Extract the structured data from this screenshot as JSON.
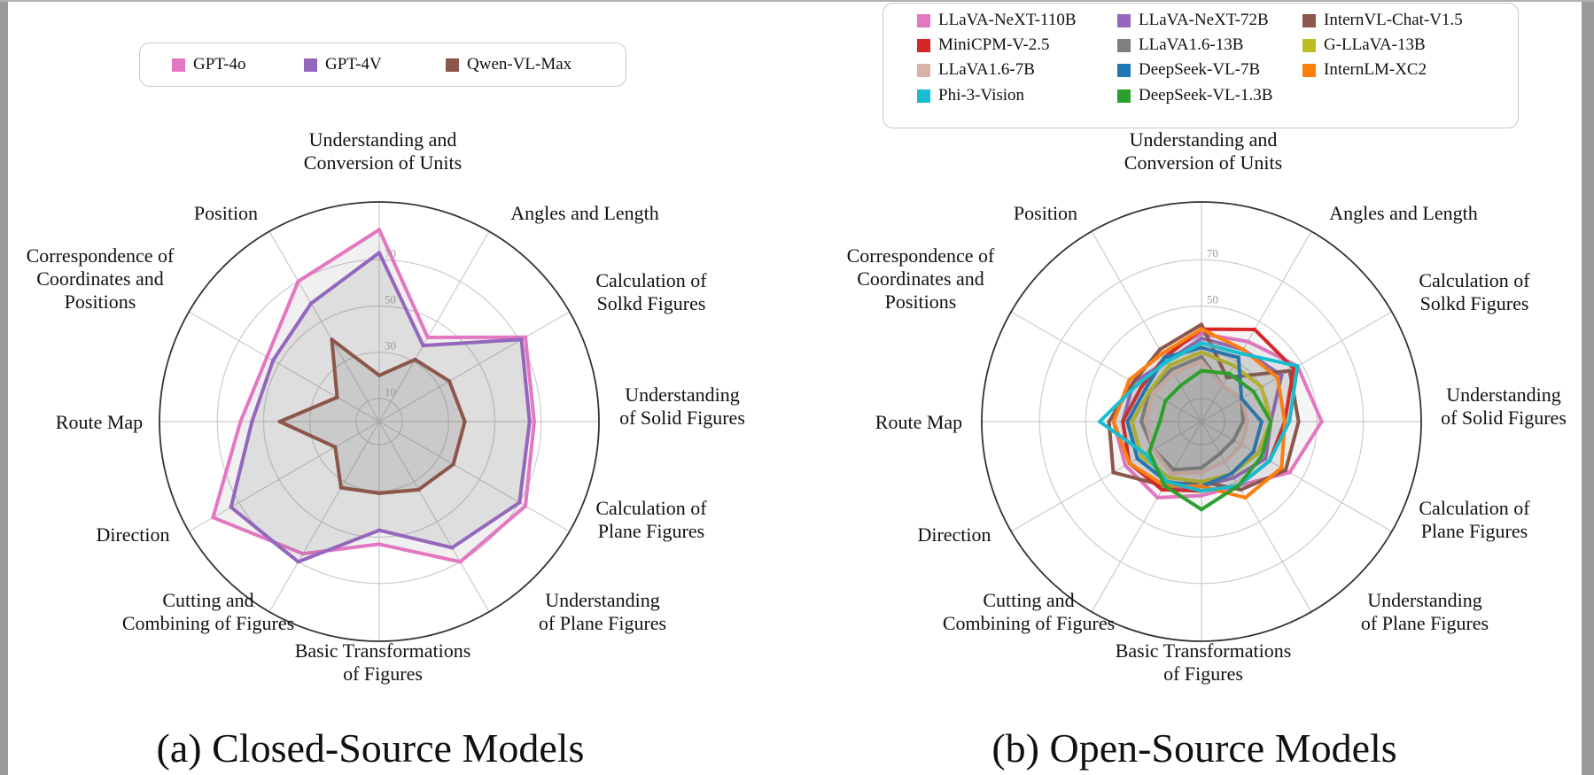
{
  "chart_data": [
    {
      "type": "radar",
      "title": "(a) Closed-Source Models",
      "axes": [
        "Understanding and Conversion of Units",
        "Angles and Length",
        "Calculation of Solkd Figures",
        "Understanding of Solid Figures",
        "Calculation of Plane Figures",
        "Understanding of Plane Figures",
        "Basic Transformations of Figures",
        "Cutting and Combining of Figures",
        "Direction",
        "Route Map",
        "Correspondence of Coordinates and Positions",
        "Position"
      ],
      "r_ticks": [
        10,
        30,
        50,
        70
      ],
      "r_max": 95,
      "grid": true,
      "legend_position": "top",
      "series": [
        {
          "name": "GPT-4o",
          "color": "#e377c2",
          "values": [
            83,
            42,
            73,
            67,
            73,
            70,
            53,
            66,
            83,
            60,
            56,
            70
          ]
        },
        {
          "name": "GPT-4V",
          "color": "#9467bd",
          "values": [
            73,
            38,
            71,
            65,
            70,
            63,
            47,
            70,
            74,
            55,
            53,
            59
          ]
        },
        {
          "name": "Qwen-VL-Max",
          "color": "#8c564b",
          "values": [
            20,
            31,
            35,
            37,
            37,
            34,
            31,
            33,
            22,
            43,
            21,
            41
          ]
        }
      ]
    },
    {
      "type": "radar",
      "title": "(b) Open-Source Models",
      "axes": [
        "Understanding and Conversion of Units",
        "Angles and Length",
        "Calculation of Solkd Figures",
        "Understanding of Solid Figures",
        "Calculation of Plane Figures",
        "Understanding of Plane Figures",
        "Basic Transformations of Figures",
        "Cutting and Combining of Figures",
        "Direction",
        "Route Map",
        "Correspondence of Coordinates and Positions",
        "Position"
      ],
      "r_ticks": [
        30,
        50,
        70
      ],
      "r_max": 95,
      "grid": true,
      "legend_position": "top",
      "series": [
        {
          "name": "LLaVA-NeXT-110B",
          "color": "#e377c2",
          "values": [
            38,
            40,
            48,
            52,
            44,
            32,
            32,
            38,
            38,
            38,
            36,
            34
          ]
        },
        {
          "name": "LLaVA-NeXT-72B",
          "color": "#9467bd",
          "values": [
            36,
            36,
            40,
            30,
            32,
            28,
            28,
            34,
            36,
            34,
            34,
            30
          ]
        },
        {
          "name": "InternVL-Chat-V1.5",
          "color": "#8c564b",
          "values": [
            42,
            22,
            44,
            42,
            42,
            34,
            26,
            32,
            44,
            40,
            34,
            36
          ]
        },
        {
          "name": "MiniCPM-V-2.5",
          "color": "#d62728",
          "values": [
            40,
            46,
            46,
            36,
            34,
            32,
            30,
            34,
            36,
            34,
            30,
            32
          ]
        },
        {
          "name": "LLaVA1.6-13B",
          "color": "#7f7f7f",
          "values": [
            28,
            18,
            20,
            18,
            16,
            16,
            20,
            24,
            24,
            26,
            26,
            26
          ]
        },
        {
          "name": "G-LLaVA-13B",
          "color": "#bcbd22",
          "values": [
            30,
            28,
            30,
            30,
            28,
            26,
            26,
            28,
            30,
            30,
            26,
            28
          ]
        },
        {
          "name": "LLaVA1.6-7B",
          "color": "#d9b3ab",
          "values": [
            26,
            18,
            20,
            20,
            20,
            20,
            22,
            26,
            24,
            24,
            24,
            24
          ]
        },
        {
          "name": "DeepSeek-VL-7B",
          "color": "#1f77b4",
          "values": [
            32,
            32,
            20,
            26,
            26,
            26,
            28,
            30,
            32,
            32,
            28,
            32
          ]
        },
        {
          "name": "InternLM-XC2",
          "color": "#ff7f0e",
          "values": [
            40,
            36,
            38,
            36,
            40,
            38,
            28,
            32,
            36,
            38,
            36,
            34
          ]
        },
        {
          "name": "Phi-3-Vision",
          "color": "#17becf",
          "values": [
            34,
            34,
            48,
            38,
            34,
            32,
            30,
            30,
            28,
            44,
            32,
            30
          ]
        },
        {
          "name": "DeepSeek-VL-1.3B",
          "color": "#2ca02c",
          "values": [
            22,
            24,
            26,
            30,
            30,
            32,
            38,
            32,
            26,
            18,
            18,
            18
          ]
        }
      ]
    }
  ],
  "captions": {
    "left": "(a) Closed-Source Models",
    "right": "(b) Open-Source Models"
  },
  "axis_labels": {
    "units": [
      "Understanding and",
      "Conversion of  Units"
    ],
    "angles": [
      "Angles and Length"
    ],
    "solid_calc": [
      "Calculation of",
      "Solkd Figures"
    ],
    "solid_und": [
      "Understanding",
      "of Solid Figures"
    ],
    "plane_calc": [
      "Calculation of",
      "Plane Figures"
    ],
    "plane_und": [
      "Understanding",
      "of Plane Figures"
    ],
    "transform": [
      "Basic Transformations",
      "of  Figures"
    ],
    "cutting": [
      "Cutting and",
      "Combining of  Figures"
    ],
    "direction": [
      "Direction"
    ],
    "route": [
      "Route Map"
    ],
    "coords": [
      "Correspondence of",
      "Coordinates and",
      "Positions"
    ],
    "position": [
      "Position"
    ]
  }
}
